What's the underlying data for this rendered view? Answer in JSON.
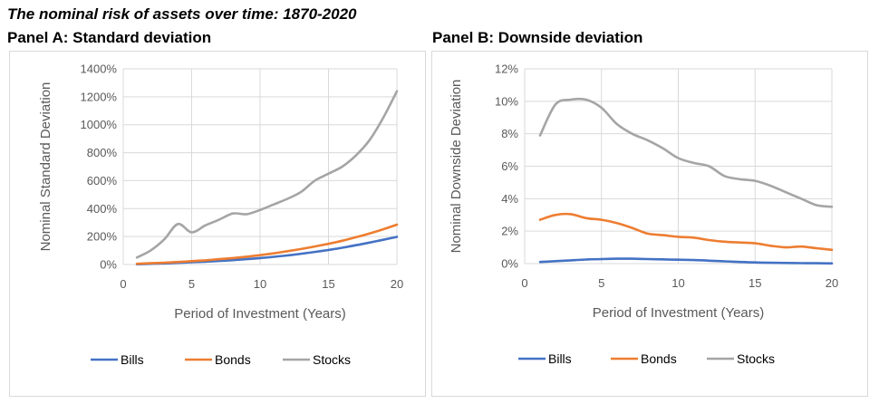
{
  "figure_title": "The nominal risk of assets over time: 1870-2020",
  "chart_data": [
    {
      "id": "A",
      "type": "line",
      "title": "Panel A: Standard deviation",
      "xlabel": "Period of Investment (Years)",
      "ylabel": "Nominal Standard Deviation",
      "xlim": [
        0,
        20
      ],
      "xticks": [
        0,
        5,
        10,
        15,
        20
      ],
      "ylim": [
        0,
        14
      ],
      "yticks": [
        0,
        2,
        4,
        6,
        8,
        10,
        12,
        14
      ],
      "ytick_labels": [
        "0%",
        "200%",
        "400%",
        "600%",
        "800%",
        "1000%",
        "1200%",
        "1400%"
      ],
      "grid": true,
      "legend": "bottom",
      "x": [
        1,
        2,
        3,
        4,
        5,
        6,
        7,
        8,
        9,
        10,
        11,
        12,
        13,
        14,
        15,
        16,
        17,
        18,
        19,
        20
      ],
      "series": [
        {
          "name": "Bills",
          "color": "#4472C4",
          "values": [
            0.02,
            0.05,
            0.08,
            0.12,
            0.16,
            0.2,
            0.25,
            0.31,
            0.38,
            0.46,
            0.55,
            0.65,
            0.77,
            0.9,
            1.04,
            1.2,
            1.38,
            1.57,
            1.77,
            1.98
          ]
        },
        {
          "name": "Bonds",
          "color": "#ED7D31",
          "values": [
            0.05,
            0.09,
            0.13,
            0.18,
            0.24,
            0.3,
            0.38,
            0.46,
            0.56,
            0.67,
            0.8,
            0.95,
            1.11,
            1.29,
            1.48,
            1.7,
            1.95,
            2.22,
            2.52,
            2.85
          ]
        },
        {
          "name": "Stocks",
          "color": "#A5A5A5",
          "values": [
            0.5,
            1.0,
            1.8,
            2.9,
            2.3,
            2.8,
            3.2,
            3.65,
            3.6,
            3.9,
            4.3,
            4.7,
            5.2,
            6.0,
            6.5,
            7.0,
            7.8,
            8.9,
            10.5,
            12.4
          ]
        }
      ]
    },
    {
      "id": "B",
      "type": "line",
      "title": "Panel B: Downside deviation",
      "xlabel": "Period of Investment (Years)",
      "ylabel": "Nominal Downside Deviation",
      "xlim": [
        0,
        20
      ],
      "xticks": [
        0,
        5,
        10,
        15,
        20
      ],
      "ylim": [
        0,
        12
      ],
      "yticks": [
        0,
        2,
        4,
        6,
        8,
        10,
        12
      ],
      "ytick_labels": [
        "0%",
        "2%",
        "4%",
        "6%",
        "8%",
        "10%",
        "12%"
      ],
      "grid": true,
      "legend": "bottom",
      "x": [
        1,
        2,
        3,
        4,
        5,
        6,
        7,
        8,
        9,
        10,
        11,
        12,
        13,
        14,
        15,
        16,
        17,
        18,
        19,
        20
      ],
      "series": [
        {
          "name": "Bills",
          "color": "#4472C4",
          "values": [
            0.1,
            0.15,
            0.2,
            0.25,
            0.28,
            0.3,
            0.3,
            0.28,
            0.26,
            0.24,
            0.22,
            0.18,
            0.14,
            0.1,
            0.07,
            0.05,
            0.04,
            0.03,
            0.02,
            0.01
          ]
        },
        {
          "name": "Bonds",
          "color": "#ED7D31",
          "values": [
            2.7,
            3.0,
            3.05,
            2.8,
            2.7,
            2.5,
            2.2,
            1.85,
            1.75,
            1.65,
            1.6,
            1.45,
            1.35,
            1.3,
            1.25,
            1.1,
            1.0,
            1.05,
            0.95,
            0.85
          ]
        },
        {
          "name": "Stocks",
          "color": "#A5A5A5",
          "values": [
            7.9,
            9.8,
            10.1,
            10.1,
            9.6,
            8.6,
            8.0,
            7.6,
            7.1,
            6.5,
            6.2,
            6.0,
            5.4,
            5.2,
            5.1,
            4.8,
            4.4,
            4.0,
            3.6,
            3.5
          ]
        }
      ]
    }
  ]
}
